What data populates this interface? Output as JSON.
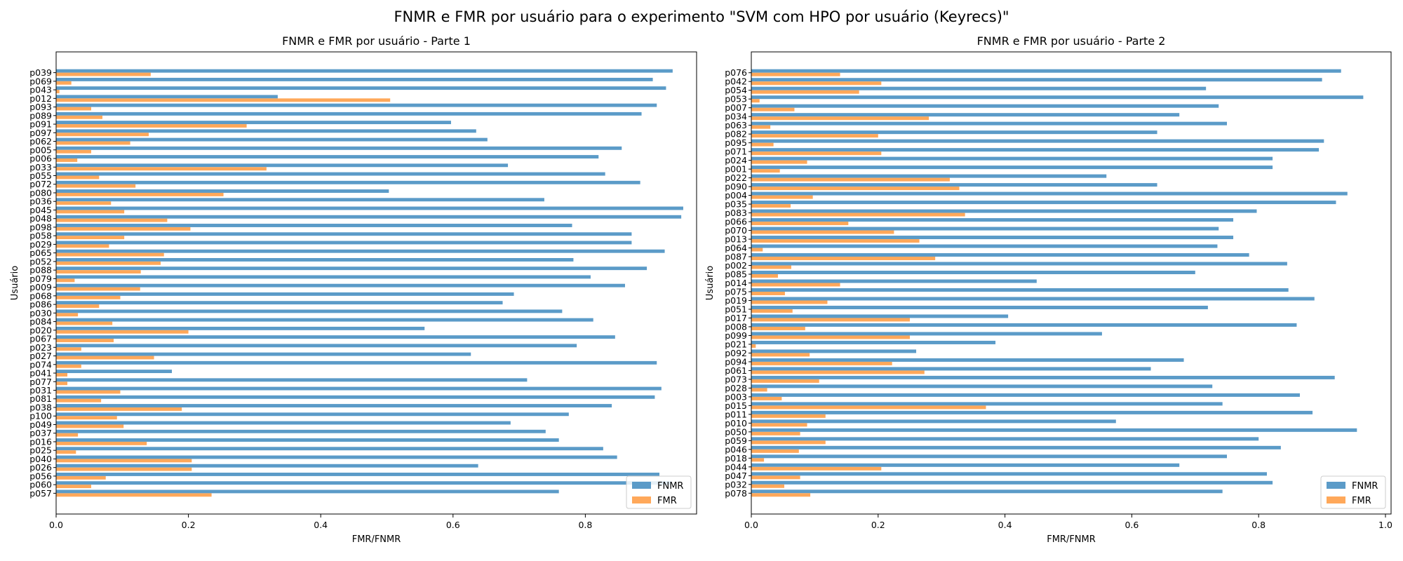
{
  "suptitle": "FNMR e FMR por usuário para o experimento \"SVM com HPO por usuário (Keyrecs)\"",
  "colors": {
    "FNMR": "#5b9bc8",
    "FMR": "#ffa85a"
  },
  "chart_data": [
    {
      "type": "bar",
      "orientation": "horizontal",
      "title": "FNMR e FMR por usuário - Parte 1",
      "xlabel": "FMR/FNMR",
      "ylabel": "Usuário",
      "xlim": [
        0,
        1.0
      ],
      "xticks": [
        "0.0",
        "0.2",
        "0.4",
        "0.6",
        "0.8"
      ],
      "legend": "lower-right",
      "categories": [
        "p039",
        "p069",
        "p043",
        "p012",
        "p093",
        "p089",
        "p091",
        "p097",
        "p062",
        "p005",
        "p006",
        "p033",
        "p055",
        "p072",
        "p080",
        "p036",
        "p045",
        "p048",
        "p098",
        "p058",
        "p029",
        "p065",
        "p052",
        "p088",
        "p079",
        "p009",
        "p068",
        "p086",
        "p030",
        "p084",
        "p020",
        "p067",
        "p023",
        "p027",
        "p074",
        "p041",
        "p077",
        "p031",
        "p081",
        "p038",
        "p100",
        "p049",
        "p037",
        "p016",
        "p025",
        "p040",
        "p026",
        "p056",
        "p060",
        "p057"
      ],
      "series": [
        {
          "name": "FNMR",
          "values": [
            0.932,
            0.902,
            0.922,
            0.335,
            0.908,
            0.885,
            0.597,
            0.635,
            0.652,
            0.855,
            0.82,
            0.683,
            0.83,
            0.883,
            0.503,
            0.738,
            0.948,
            0.945,
            0.78,
            0.87,
            0.87,
            0.92,
            0.782,
            0.893,
            0.808,
            0.86,
            0.692,
            0.675,
            0.765,
            0.812,
            0.557,
            0.845,
            0.787,
            0.627,
            0.908,
            0.175,
            0.712,
            0.915,
            0.905,
            0.84,
            0.775,
            0.687,
            0.74,
            0.76,
            0.827,
            0.848,
            0.638,
            0.912,
            0.93,
            0.76
          ]
        },
        {
          "name": "FMR",
          "values": [
            0.143,
            0.023,
            0.005,
            0.505,
            0.053,
            0.07,
            0.288,
            0.14,
            0.112,
            0.053,
            0.032,
            0.318,
            0.065,
            0.12,
            0.253,
            0.083,
            0.103,
            0.168,
            0.203,
            0.103,
            0.08,
            0.163,
            0.158,
            0.128,
            0.028,
            0.127,
            0.097,
            0.065,
            0.033,
            0.085,
            0.2,
            0.087,
            0.038,
            0.148,
            0.038,
            0.017,
            0.017,
            0.097,
            0.068,
            0.19,
            0.092,
            0.102,
            0.033,
            0.137,
            0.03,
            0.205,
            0.205,
            0.075,
            0.053,
            0.235
          ]
        }
      ]
    },
    {
      "type": "bar",
      "orientation": "horizontal",
      "title": "FNMR e FMR por usuário - Parte 2",
      "xlabel": "FMR/FNMR",
      "ylabel": "Usuário",
      "xlim": [
        0,
        1.0
      ],
      "xticks": [
        "0.0",
        "0.2",
        "0.4",
        "0.6",
        "0.8",
        "1.0"
      ],
      "legend": "lower-right",
      "categories": [
        "p076",
        "p042",
        "p054",
        "p053",
        "p007",
        "p034",
        "p063",
        "p082",
        "p095",
        "p071",
        "p024",
        "p001",
        "p022",
        "p090",
        "p004",
        "p035",
        "p083",
        "p066",
        "p070",
        "p013",
        "p064",
        "p087",
        "p002",
        "p085",
        "p014",
        "p075",
        "p019",
        "p051",
        "p017",
        "p008",
        "p099",
        "p021",
        "p092",
        "p094",
        "p061",
        "p073",
        "p028",
        "p003",
        "p015",
        "p011",
        "p010",
        "p050",
        "p059",
        "p046",
        "p018",
        "p044",
        "p047",
        "p032",
        "p078"
      ],
      "series": [
        {
          "name": "FNMR",
          "values": [
            0.93,
            0.9,
            0.717,
            0.965,
            0.737,
            0.675,
            0.75,
            0.64,
            0.903,
            0.895,
            0.822,
            0.822,
            0.56,
            0.64,
            0.94,
            0.922,
            0.797,
            0.76,
            0.737,
            0.76,
            0.735,
            0.785,
            0.845,
            0.7,
            0.45,
            0.847,
            0.888,
            0.72,
            0.405,
            0.86,
            0.553,
            0.385,
            0.26,
            0.682,
            0.63,
            0.92,
            0.727,
            0.865,
            0.743,
            0.885,
            0.575,
            0.955,
            0.8,
            0.835,
            0.75,
            0.675,
            0.813,
            0.822,
            0.743
          ]
        },
        {
          "name": "FMR",
          "values": [
            0.14,
            0.205,
            0.17,
            0.013,
            0.068,
            0.28,
            0.03,
            0.2,
            0.035,
            0.205,
            0.088,
            0.045,
            0.313,
            0.328,
            0.097,
            0.062,
            0.337,
            0.153,
            0.225,
            0.265,
            0.018,
            0.29,
            0.063,
            0.042,
            0.14,
            0.053,
            0.12,
            0.065,
            0.25,
            0.085,
            0.25,
            0.007,
            0.092,
            0.222,
            0.273,
            0.107,
            0.025,
            0.048,
            0.37,
            0.117,
            0.088,
            0.077,
            0.117,
            0.075,
            0.02,
            0.205,
            0.077,
            0.052,
            0.093
          ]
        }
      ]
    }
  ]
}
